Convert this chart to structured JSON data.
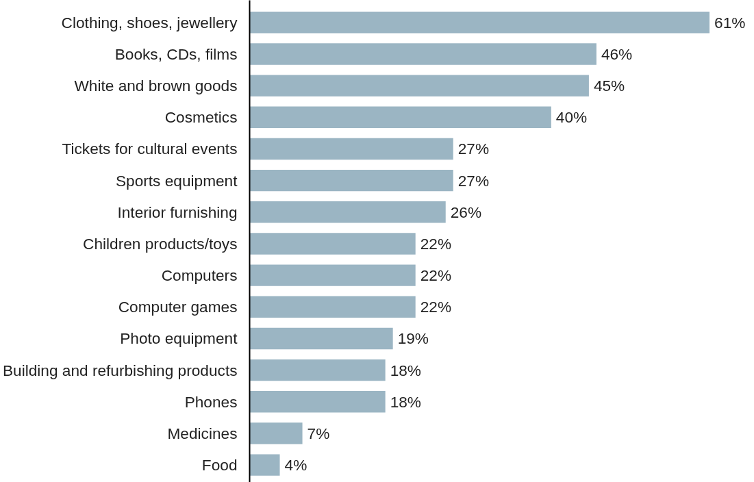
{
  "chart_data": {
    "type": "bar",
    "orientation": "horizontal",
    "categories": [
      "Clothing, shoes, jewellery",
      "Books, CDs, films",
      "White and brown goods",
      "Cosmetics",
      "Tickets for cultural events",
      "Sports equipment",
      "Interior furnishing",
      "Children products/toys",
      "Computers",
      "Computer games",
      "Photo equipment",
      "Building and refurbishing products",
      "Phones",
      "Medicines",
      "Food"
    ],
    "values": [
      61,
      46,
      45,
      40,
      27,
      27,
      26,
      22,
      22,
      22,
      19,
      18,
      18,
      7,
      4
    ],
    "value_labels": [
      "61%",
      "46%",
      "45%",
      "40%",
      "27%",
      "27%",
      "26%",
      "22%",
      "22%",
      "22%",
      "19%",
      "18%",
      "18%",
      "7%",
      "4%"
    ],
    "color": "#9bb5c3",
    "tick_labels": "y",
    "grid": false
  }
}
